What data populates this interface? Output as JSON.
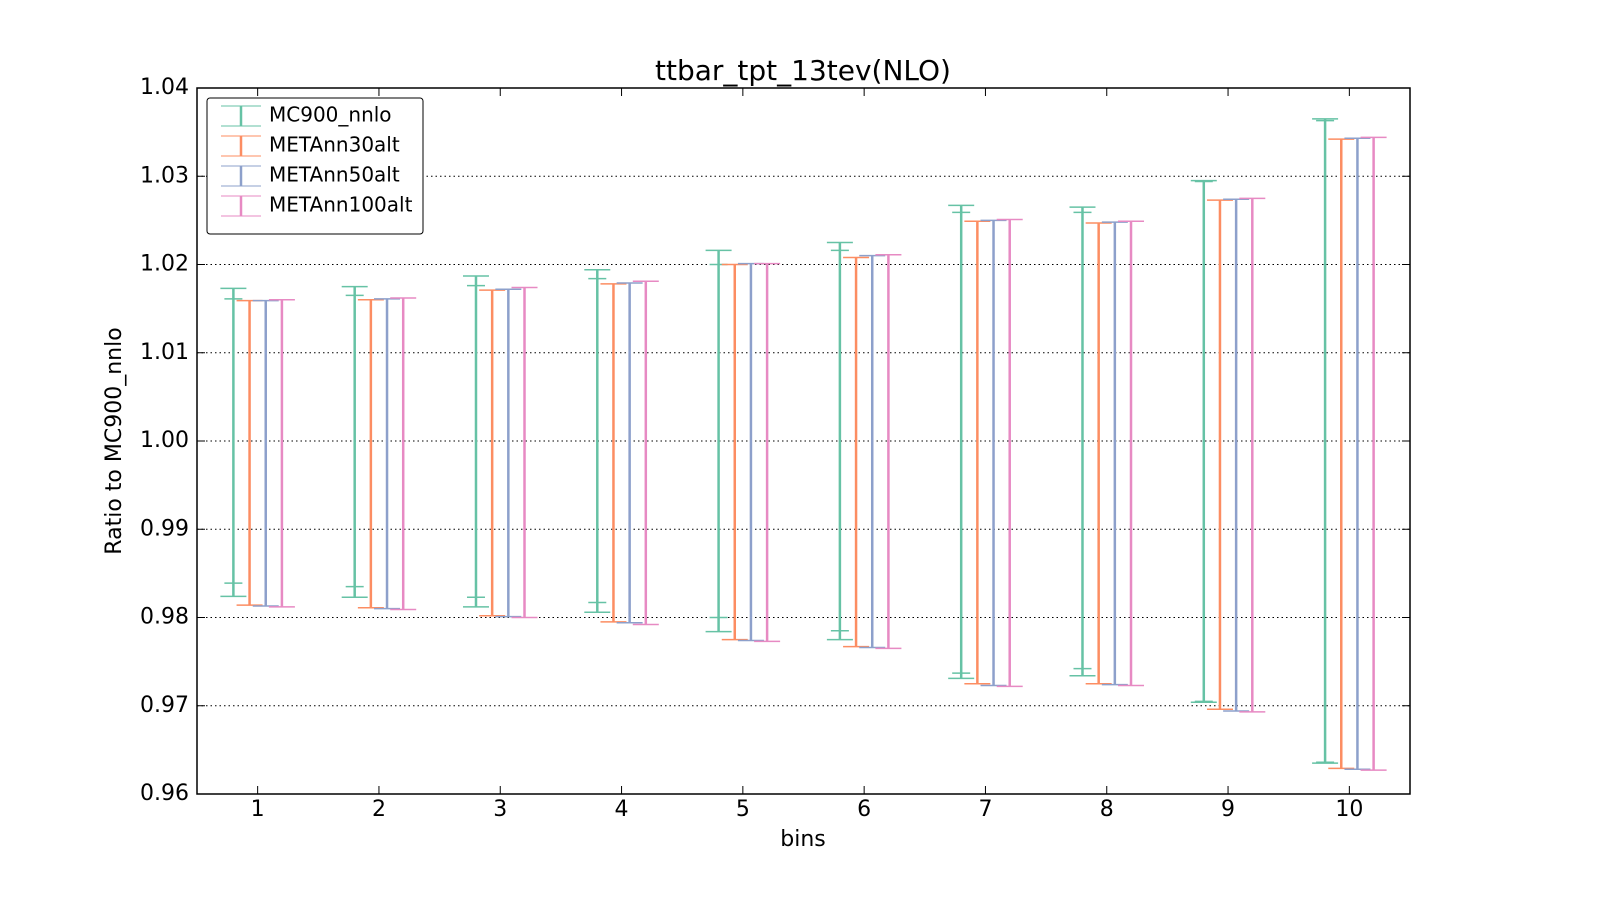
{
  "chart_data": {
    "type": "errorbar",
    "title": "ttbar_tpt_13tev(NLO)",
    "xlabel": "bins",
    "ylabel": "Ratio to MC900_nnlo",
    "x": [
      1,
      2,
      3,
      4,
      5,
      6,
      7,
      8,
      9,
      10
    ],
    "xlim": [
      0.5,
      10.5
    ],
    "xticks": [
      1,
      2,
      3,
      4,
      5,
      6,
      7,
      8,
      9,
      10
    ],
    "ylim": [
      0.96,
      1.04
    ],
    "yticks": [
      0.96,
      0.97,
      0.98,
      0.99,
      {
        "value": 1,
        "label": "1.00"
      },
      1.01,
      1.02,
      1.03,
      1.04
    ],
    "grid": true,
    "legend": "upper left",
    "series": [
      {
        "name": "MC900_nnlo",
        "color": "#66c2a5",
        "high": [
          1.0173,
          1.0175,
          1.0187,
          1.0194,
          1.0216,
          1.0225,
          1.0267,
          1.0265,
          1.0295,
          1.0365
        ],
        "low": [
          0.9824,
          0.9823,
          0.9812,
          0.9806,
          0.9784,
          0.9775,
          0.9731,
          0.9734,
          0.9704,
          0.9635
        ],
        "inner_high": [
          1.0161,
          1.0165,
          1.0176,
          1.0184,
          1.02,
          1.0216,
          1.0259,
          1.0259,
          1.0294,
          1.0363
        ],
        "inner_low": [
          0.9839,
          0.9835,
          0.9823,
          0.9817,
          0.98,
          0.9785,
          0.9737,
          0.9742,
          0.9705,
          0.9636
        ]
      },
      {
        "name": "METAnn30alt",
        "color": "#fc8d62",
        "high": [
          1.0159,
          1.016,
          1.0171,
          1.0178,
          1.02,
          1.0208,
          1.0249,
          1.0247,
          1.0273,
          1.0342
        ],
        "low": [
          0.9814,
          0.9811,
          0.9802,
          0.9795,
          0.9775,
          0.9767,
          0.9725,
          0.9725,
          0.9696,
          0.9629
        ]
      },
      {
        "name": "METAnn50alt",
        "color": "#8da0cb",
        "high": [
          1.0159,
          1.0161,
          1.0172,
          1.0179,
          1.0201,
          1.021,
          1.025,
          1.0248,
          1.0274,
          1.0343
        ],
        "low": [
          0.9813,
          0.981,
          0.9801,
          0.9794,
          0.9774,
          0.9766,
          0.9723,
          0.9724,
          0.9694,
          0.9628
        ]
      },
      {
        "name": "METAnn100alt",
        "color": "#e78ac3",
        "high": [
          1.016,
          1.0162,
          1.0174,
          1.0181,
          1.0201,
          1.0211,
          1.0251,
          1.0249,
          1.0275,
          1.0344
        ],
        "low": [
          0.9812,
          0.9809,
          0.98,
          0.9792,
          0.9773,
          0.9765,
          0.9722,
          0.9723,
          0.9693,
          0.9627
        ]
      }
    ]
  }
}
